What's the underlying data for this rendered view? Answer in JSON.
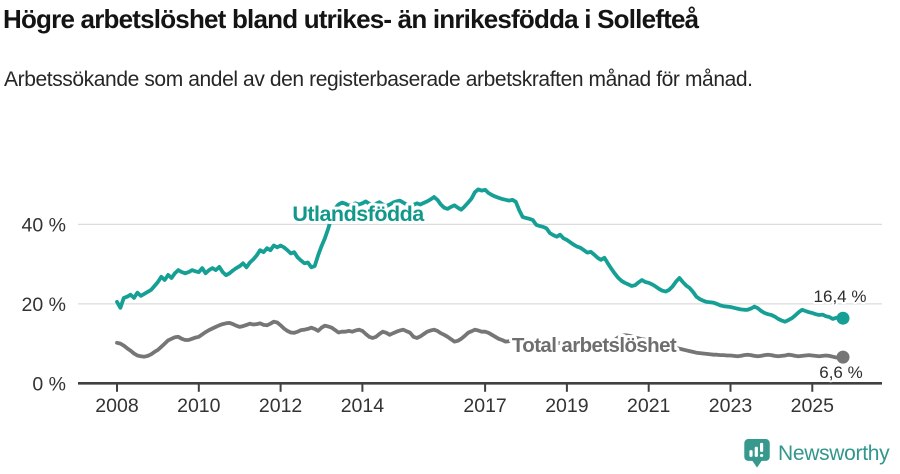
{
  "title": "Högre arbetslöshet bland utrikes- än inrikesfödda i Sollefteå",
  "subtitle": "Arbetssökande som andel av den registerbaserade arbetskraften månad för månad.",
  "branding": {
    "logo_text": "Newsworthy",
    "logo_color": "#31968c"
  },
  "chart_data": {
    "type": "line",
    "frequency": "monthly",
    "x_start": "2008-01",
    "x_end": "2025-10",
    "grid": "horizontal",
    "legend_position": "inline-labels",
    "x_tick_years": [
      2008,
      2010,
      2012,
      2014,
      2017,
      2019,
      2021,
      2023,
      2025
    ],
    "x_tick_labels": [
      "2008",
      "2010",
      "2012",
      "2014",
      "2017",
      "2019",
      "2021",
      "2023",
      "2025"
    ],
    "y_ticks": [
      0,
      20,
      40
    ],
    "y_tick_labels": [
      "0 %",
      "20 %",
      "40 %"
    ],
    "ylim": [
      0,
      51
    ],
    "series": [
      {
        "name": "Utlandsfödda",
        "color": "#16a095",
        "end_label": "16,4 %",
        "end_value": 16.4,
        "values": [
          20.5,
          19.0,
          21.5,
          21.8,
          22.3,
          21.5,
          22.8,
          22.0,
          22.5,
          23.0,
          23.5,
          24.5,
          25.5,
          26.8,
          26.0,
          27.3,
          26.5,
          27.7,
          28.5,
          28.0,
          27.7,
          28.0,
          28.5,
          28.2,
          28.0,
          29.0,
          27.7,
          28.5,
          29.0,
          28.5,
          29.3,
          28.0,
          27.2,
          27.7,
          28.4,
          29.0,
          29.5,
          30.2,
          29.2,
          30.4,
          31.2,
          32.2,
          33.5,
          33.0,
          34.0,
          33.5,
          34.7,
          34.2,
          34.7,
          34.2,
          33.5,
          32.7,
          33.0,
          31.7,
          30.9,
          30.2,
          30.4,
          29.2,
          29.5,
          32.2,
          34.5,
          36.5,
          39.0,
          42.0,
          44.0,
          45.0,
          45.5,
          45.2,
          44.7,
          45.0,
          45.3,
          45.0,
          45.3,
          45.8,
          45.2,
          44.8,
          45.2,
          45.6,
          45.0,
          44.6,
          45.0,
          45.5,
          45.8,
          46.0,
          45.5,
          45.0,
          44.6,
          44.9,
          45.3,
          45.0,
          45.4,
          45.8,
          46.3,
          46.9,
          46.2,
          45.0,
          44.2,
          43.9,
          44.4,
          44.8,
          44.2,
          43.7,
          44.5,
          45.5,
          46.5,
          48.1,
          48.8,
          48.5,
          48.7,
          47.9,
          47.4,
          47.0,
          46.7,
          46.4,
          46.2,
          46.0,
          46.2,
          45.7,
          43.6,
          41.9,
          41.6,
          41.4,
          41.1,
          39.9,
          39.6,
          39.4,
          39.0,
          37.8,
          37.3,
          36.9,
          37.4,
          36.5,
          36.1,
          35.5,
          34.9,
          34.4,
          34.1,
          33.5,
          32.9,
          33.1,
          32.4,
          31.6,
          31.1,
          31.6,
          30.2,
          28.9,
          27.7,
          26.6,
          25.8,
          25.3,
          24.9,
          24.5,
          24.7,
          25.4,
          26.0,
          25.5,
          25.3,
          24.9,
          24.4,
          23.8,
          23.3,
          23.1,
          23.5,
          24.4,
          25.6,
          26.5,
          25.5,
          24.6,
          24.0,
          23.0,
          21.8,
          21.2,
          20.8,
          20.5,
          20.4,
          20.3,
          20.0,
          19.6,
          19.4,
          19.3,
          19.2,
          19.0,
          18.8,
          18.6,
          18.5,
          18.5,
          18.8,
          19.3,
          18.9,
          18.2,
          17.7,
          17.4,
          17.2,
          16.8,
          16.2,
          15.8,
          15.5,
          15.9,
          16.4,
          17.1,
          17.9,
          18.5,
          18.2,
          17.9,
          17.7,
          17.4,
          17.2,
          17.3,
          16.9,
          16.7,
          16.2,
          16.5,
          16.6,
          16.4
        ]
      },
      {
        "name": "Total arbetslöshet",
        "color": "#767676",
        "end_label": "6,6 %",
        "end_value": 6.6,
        "values": [
          10.2,
          10.0,
          9.5,
          8.8,
          8.2,
          7.5,
          7.0,
          6.8,
          6.7,
          6.9,
          7.3,
          7.9,
          8.4,
          9.2,
          10.0,
          10.8,
          11.2,
          11.6,
          11.7,
          11.2,
          10.9,
          10.9,
          11.2,
          11.5,
          11.7,
          12.3,
          12.9,
          13.4,
          13.8,
          14.2,
          14.6,
          14.9,
          15.1,
          15.2,
          14.9,
          14.5,
          14.2,
          14.4,
          14.7,
          15.0,
          14.8,
          14.9,
          15.1,
          14.7,
          14.6,
          15.0,
          15.5,
          15.3,
          14.6,
          13.8,
          13.2,
          12.8,
          12.7,
          13.0,
          13.4,
          13.5,
          13.7,
          14.0,
          13.7,
          13.2,
          14.0,
          14.5,
          14.3,
          14.0,
          13.4,
          12.8,
          13.0,
          13.0,
          13.2,
          13.0,
          13.3,
          13.5,
          13.2,
          12.4,
          11.7,
          11.4,
          11.7,
          12.4,
          13.0,
          12.7,
          12.2,
          12.6,
          13.0,
          13.3,
          13.5,
          13.1,
          12.7,
          11.7,
          11.4,
          11.8,
          12.4,
          13.0,
          13.3,
          13.5,
          13.2,
          12.6,
          12.2,
          11.7,
          11.1,
          10.5,
          10.7,
          11.2,
          11.9,
          12.7,
          13.1,
          13.5,
          13.3,
          13.0,
          13.0,
          12.7,
          12.2,
          11.7,
          11.2,
          10.9,
          10.5,
          10.6,
          10.8,
          11.0,
          11.2,
          11.3,
          11.0,
          10.8,
          10.6,
          10.4,
          10.2,
          10.0,
          9.9,
          9.8,
          10.0,
          10.2,
          10.1,
          10.0,
          9.9,
          9.8,
          9.7,
          9.6,
          9.5,
          9.6,
          9.8,
          9.7,
          9.6,
          9.5,
          9.6,
          9.9,
          10.2,
          10.4,
          10.9,
          11.5,
          11.9,
          12.1,
          12.0,
          11.8,
          11.5,
          11.3,
          11.1,
          11.0,
          10.9,
          10.7,
          10.5,
          10.2,
          10.0,
          9.7,
          9.4,
          9.1,
          8.9,
          8.7,
          8.5,
          8.3,
          8.1,
          7.9,
          7.7,
          7.6,
          7.5,
          7.4,
          7.3,
          7.2,
          7.2,
          7.1,
          7.1,
          7.0,
          7.0,
          6.9,
          6.8,
          6.9,
          7.1,
          7.2,
          7.1,
          6.9,
          6.8,
          6.9,
          7.1,
          7.2,
          7.1,
          6.9,
          6.8,
          6.9,
          7.0,
          7.2,
          7.1,
          6.9,
          6.8,
          6.9,
          7.0,
          7.1,
          7.0,
          6.9,
          6.8,
          6.9,
          7.0,
          6.9,
          6.7,
          6.5,
          6.6,
          6.6
        ]
      }
    ]
  }
}
